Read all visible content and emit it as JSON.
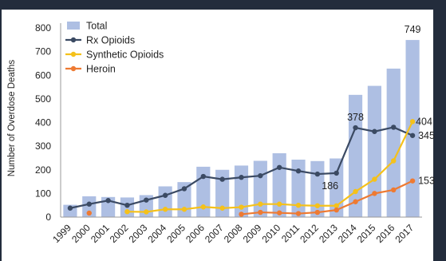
{
  "chart_data": {
    "type": "bar",
    "ylabel": "Number of Overdose Deaths",
    "xlabel": "",
    "ylim": [
      0,
      800
    ],
    "yticks": [
      0,
      100,
      200,
      300,
      400,
      500,
      600,
      700,
      800
    ],
    "grid": false,
    "legend_position": "top-left",
    "categories": [
      "1999",
      "2000",
      "2001",
      "2002",
      "2003",
      "2004",
      "2005",
      "2006",
      "2007",
      "2008",
      "2009",
      "2010",
      "2011",
      "2012",
      "2013",
      "2014",
      "2015",
      "2016",
      "2017"
    ],
    "series": [
      {
        "name": "Total",
        "kind": "bar",
        "color": "#aebfe3",
        "values": [
          52,
          88,
          85,
          83,
          93,
          130,
          148,
          213,
          200,
          218,
          238,
          270,
          243,
          237,
          248,
          517,
          555,
          628,
          749
        ]
      },
      {
        "name": "Rx Opioids",
        "kind": "line",
        "color": "#3b4a63",
        "values": [
          38,
          55,
          70,
          50,
          72,
          92,
          120,
          172,
          160,
          168,
          175,
          210,
          195,
          182,
          186,
          378,
          362,
          380,
          345
        ]
      },
      {
        "name": "Synthetic Opioids",
        "kind": "line",
        "color": "#f5c11b",
        "values": [
          null,
          null,
          null,
          23,
          22,
          33,
          33,
          43,
          38,
          42,
          55,
          55,
          50,
          48,
          48,
          108,
          160,
          238,
          404
        ]
      },
      {
        "name": "Heroin",
        "kind": "line",
        "color": "#ee7a32",
        "values": [
          null,
          17,
          null,
          null,
          null,
          null,
          null,
          null,
          null,
          12,
          20,
          18,
          15,
          20,
          30,
          65,
          100,
          115,
          153
        ]
      }
    ],
    "annotations": [
      {
        "text": "749",
        "series": "Total",
        "category": "2017"
      },
      {
        "text": "378",
        "series": "Rx Opioids",
        "category": "2014"
      },
      {
        "text": "186",
        "series": "Rx Opioids",
        "category": "2013"
      },
      {
        "text": "404",
        "series": "Synthetic Opioids",
        "category": "2017"
      },
      {
        "text": "345",
        "series": "Rx Opioids",
        "category": "2017"
      },
      {
        "text": "153",
        "series": "Heroin",
        "category": "2017"
      }
    ]
  },
  "theme": {
    "frame_color": "#232c3c",
    "axis_color": "#9a9a9a",
    "text_color": "#222222"
  }
}
